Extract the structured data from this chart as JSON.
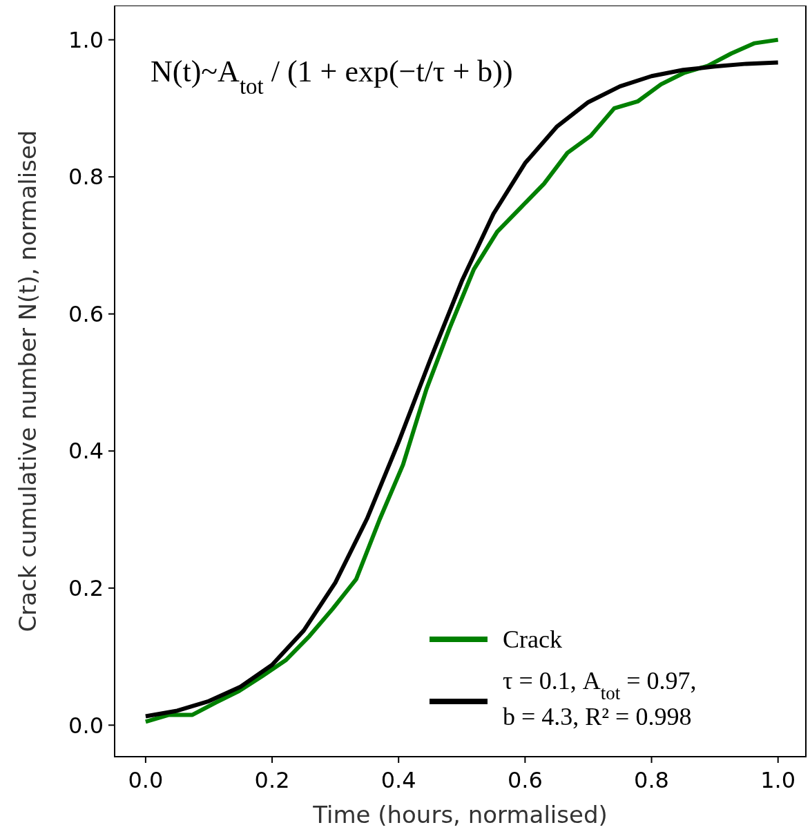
{
  "chart_data": {
    "type": "line",
    "xlabel": "Time (hours, normalised)",
    "ylabel": "Crack cumulative number N(t), normalised",
    "annotations": [
      "N(t)~A$_{tot}$ / (1 + exp(−t/τ + b))"
    ],
    "xlim": [
      -0.049,
      1.044
    ],
    "ylim": [
      -0.046,
      1.05
    ],
    "xticks": [
      {
        "value": 0,
        "label": "0.0"
      },
      {
        "value": 0.2,
        "label": "0.2"
      },
      {
        "value": 0.4,
        "label": "0.4"
      },
      {
        "value": 0.6,
        "label": "0.6"
      },
      {
        "value": 0.8,
        "label": "0.8"
      },
      {
        "value": 1,
        "label": "1.0"
      }
    ],
    "yticks": [
      {
        "value": 0,
        "label": "0.0"
      },
      {
        "value": 0.2,
        "label": "0.2"
      },
      {
        "value": 0.4,
        "label": "0.4"
      },
      {
        "value": 0.6,
        "label": "0.6"
      },
      {
        "value": 0.8,
        "label": "0.8"
      },
      {
        "value": 1,
        "label": "1.0"
      }
    ],
    "grid": false,
    "legend": "bottom right",
    "line_style": "solid",
    "series": [
      {
        "name": "Crack",
        "color": "#008000",
        "x": [
          0,
          0.037,
          0.074,
          0.111,
          0.148,
          0.185,
          0.222,
          0.259,
          0.296,
          0.333,
          0.37,
          0.407,
          0.444,
          0.481,
          0.519,
          0.556,
          0.593,
          0.63,
          0.667,
          0.704,
          0.741,
          0.778,
          0.815,
          0.852,
          0.889,
          0.926,
          0.963,
          1.0
        ],
        "values": [
          0.005,
          0.015,
          0.015,
          0.033,
          0.05,
          0.072,
          0.095,
          0.13,
          0.17,
          0.213,
          0.3,
          0.38,
          0.49,
          0.58,
          0.665,
          0.72,
          0.755,
          0.79,
          0.835,
          0.86,
          0.9,
          0.91,
          0.935,
          0.952,
          0.962,
          0.98,
          0.995,
          1.0
        ]
      },
      {
        "name": "τ = 0.1, A$_{tot}$ = 0.97, b = 4.3, R² = 0.998",
        "color": "#000000",
        "x": [
          0,
          0.05,
          0.1,
          0.15,
          0.2,
          0.25,
          0.3,
          0.35,
          0.4,
          0.45,
          0.5,
          0.55,
          0.6,
          0.65,
          0.7,
          0.75,
          0.8,
          0.85,
          0.9,
          0.95,
          1.0
        ],
        "values": [
          0.013,
          0.021,
          0.035,
          0.056,
          0.088,
          0.138,
          0.208,
          0.301,
          0.413,
          0.533,
          0.648,
          0.746,
          0.82,
          0.873,
          0.909,
          0.932,
          0.947,
          0.956,
          0.961,
          0.965,
          0.967
        ]
      }
    ]
  }
}
